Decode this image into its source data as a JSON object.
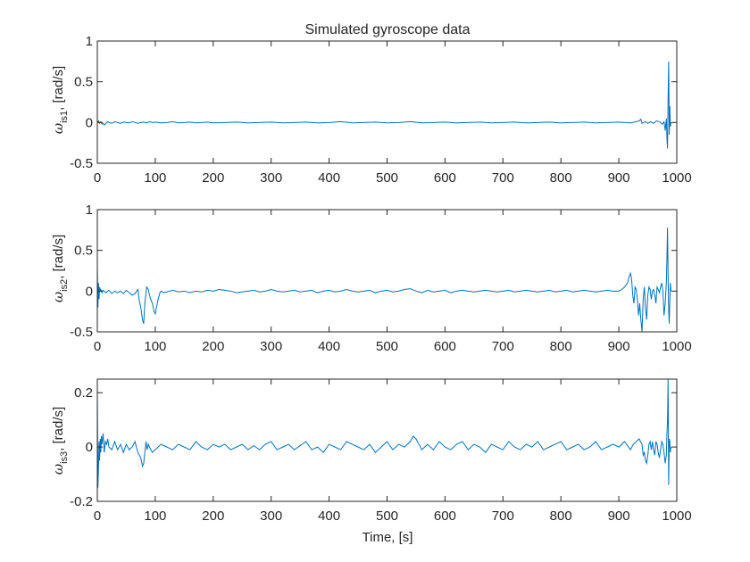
{
  "chart_data": [
    {
      "type": "line",
      "title": "Simulated gyroscope data",
      "xlabel": "",
      "ylabel": {
        "symbol": "ω",
        "subscript": "is1",
        "suffix": ", [rad/s]"
      },
      "xlim": [
        0,
        1000
      ],
      "ylim": [
        -0.5,
        1
      ],
      "xticks": [
        0,
        100,
        200,
        300,
        400,
        500,
        600,
        700,
        800,
        900,
        1000
      ],
      "yticks": [
        -0.5,
        0,
        0.5,
        1
      ],
      "ytick_labels": [
        "-0.5",
        "0",
        "0.5",
        "1"
      ],
      "grid": false,
      "series_color": "#0072BD",
      "series": [
        {
          "x": [
            0,
            2,
            4,
            6,
            8,
            10,
            12,
            14,
            16,
            18,
            20,
            25,
            30,
            35,
            40,
            45,
            50,
            55,
            60,
            65,
            70,
            75,
            80,
            85,
            90,
            95,
            100,
            110,
            120,
            130,
            140,
            150,
            160,
            170,
            180,
            190,
            200,
            220,
            240,
            260,
            280,
            300,
            320,
            340,
            360,
            380,
            400,
            420,
            440,
            460,
            480,
            500,
            520,
            540,
            560,
            580,
            600,
            620,
            640,
            660,
            680,
            700,
            720,
            740,
            760,
            780,
            800,
            820,
            840,
            860,
            880,
            900,
            920,
            930,
            935,
            938,
            940,
            943,
            946,
            950,
            955,
            960,
            965,
            970,
            975,
            978,
            980,
            982,
            983,
            984,
            985,
            986,
            987,
            988,
            989,
            990
          ],
          "y": [
            0,
            0.02,
            -0.01,
            0.01,
            -0.02,
            -0.01,
            -0.03,
            -0.02,
            0,
            0.01,
            0,
            -0.01,
            0.01,
            0,
            -0.01,
            0.005,
            0,
            -0.005,
            0.01,
            0,
            -0.01,
            0,
            0.005,
            -0.005,
            0.01,
            0,
            0.005,
            -0.005,
            0,
            0.01,
            -0.005,
            0,
            0.005,
            -0.005,
            0,
            0.005,
            -0.005,
            0,
            0.005,
            -0.005,
            0,
            0.005,
            -0.005,
            0,
            0.005,
            -0.005,
            0,
            0.01,
            -0.005,
            0,
            0.005,
            -0.005,
            0,
            0.01,
            -0.005,
            0,
            0.005,
            -0.005,
            0,
            0.005,
            -0.005,
            0,
            0.005,
            -0.005,
            0,
            0.005,
            -0.005,
            0,
            0.005,
            -0.005,
            0,
            0.005,
            -0.005,
            0.01,
            0.02,
            0.04,
            -0.01,
            0,
            0.01,
            -0.01,
            0.01,
            -0.01,
            0.02,
            0.01,
            -0.02,
            0.01,
            -0.1,
            0.05,
            -0.2,
            -0.32,
            0.3,
            0.75,
            -0.15,
            0.2,
            -0.05,
            0
          ]
        }
      ]
    },
    {
      "type": "line",
      "title": "",
      "xlabel": "",
      "ylabel": {
        "symbol": "ω",
        "subscript": "is2",
        "suffix": ", [rad/s]"
      },
      "xlim": [
        0,
        1000
      ],
      "ylim": [
        -0.5,
        1
      ],
      "xticks": [
        0,
        100,
        200,
        300,
        400,
        500,
        600,
        700,
        800,
        900,
        1000
      ],
      "yticks": [
        -0.5,
        0,
        0.5,
        1
      ],
      "ytick_labels": [
        "-0.5",
        "0",
        "0.5",
        "1"
      ],
      "grid": false,
      "series_color": "#0072BD",
      "series": [
        {
          "x": [
            0,
            1,
            2,
            3,
            4,
            5,
            6,
            8,
            10,
            15,
            20,
            25,
            30,
            35,
            40,
            45,
            50,
            55,
            60,
            65,
            70,
            72,
            75,
            78,
            80,
            82,
            85,
            88,
            90,
            92,
            95,
            98,
            100,
            102,
            105,
            108,
            110,
            115,
            120,
            130,
            140,
            150,
            160,
            170,
            180,
            190,
            200,
            210,
            220,
            230,
            240,
            250,
            260,
            270,
            280,
            290,
            300,
            310,
            320,
            330,
            340,
            350,
            360,
            370,
            380,
            390,
            400,
            410,
            420,
            430,
            440,
            450,
            460,
            470,
            480,
            490,
            500,
            510,
            520,
            530,
            540,
            550,
            560,
            570,
            580,
            590,
            600,
            610,
            620,
            630,
            640,
            650,
            660,
            670,
            680,
            690,
            700,
            710,
            720,
            730,
            740,
            750,
            760,
            770,
            780,
            790,
            800,
            810,
            820,
            830,
            840,
            850,
            860,
            870,
            880,
            890,
            900,
            905,
            910,
            915,
            918,
            920,
            922,
            924,
            926,
            928,
            930,
            932,
            934,
            936,
            938,
            940,
            942,
            944,
            946,
            948,
            950,
            952,
            954,
            956,
            958,
            960,
            962,
            964,
            966,
            968,
            970,
            972,
            974,
            976,
            978,
            980,
            982,
            983,
            984,
            985,
            986,
            987,
            988,
            989,
            990
          ],
          "y": [
            0.3,
            -0.2,
            0.1,
            -0.1,
            0.05,
            0,
            0.02,
            -0.02,
            0.01,
            -0.02,
            0.01,
            -0.03,
            0,
            -0.02,
            0,
            -0.03,
            0.01,
            -0.02,
            -0.05,
            -0.03,
            0.02,
            -0.1,
            -0.2,
            -0.35,
            -0.4,
            -0.15,
            0.05,
            0.02,
            -0.05,
            -0.1,
            -0.15,
            -0.25,
            -0.28,
            -0.2,
            -0.1,
            -0.02,
            0,
            -0.02,
            -0.01,
            0.01,
            -0.01,
            0,
            -0.02,
            0,
            -0.01,
            0.01,
            0,
            0.02,
            0.01,
            0,
            -0.02,
            -0.01,
            0,
            0.01,
            -0.01,
            0,
            0.02,
            0,
            -0.01,
            0,
            0.01,
            -0.01,
            0,
            0.01,
            -0.02,
            0,
            0.01,
            -0.01,
            0,
            0.02,
            0,
            -0.01,
            0,
            0.01,
            -0.02,
            0,
            0.01,
            -0.01,
            0,
            0.02,
            0.03,
            0,
            -0.02,
            0.01,
            -0.01,
            0,
            0.01,
            -0.02,
            0,
            0.01,
            0,
            -0.01,
            0,
            0.01,
            0,
            -0.01,
            0,
            0.01,
            -0.01,
            0,
            0.01,
            0,
            -0.01,
            0,
            0.01,
            -0.01,
            0,
            0.01,
            -0.01,
            0,
            0.01,
            0,
            -0.01,
            0,
            0.01,
            0,
            0,
            0.02,
            0.05,
            0.1,
            0.18,
            0.22,
            0.15,
            -0.05,
            -0.15,
            0.05,
            0.02,
            -0.1,
            -0.3,
            -0.15,
            -0.35,
            -0.5,
            -0.1,
            0.05,
            -0.2,
            -0.35,
            -0.05,
            0.05,
            0.02,
            -0.1,
            0,
            0.02,
            -0.05,
            -0.15,
            0.05,
            0.02,
            -0.02,
            0.05,
            0.1,
            0,
            -0.3,
            -0.15,
            0.1,
            0.4,
            0.78,
            0.2,
            -0.25,
            -0.4,
            -0.1,
            0.1,
            0
          ]
        }
      ]
    },
    {
      "type": "line",
      "title": "",
      "xlabel": "Time, [s]",
      "ylabel": {
        "symbol": "ω",
        "subscript": "is3",
        "suffix": ", [rad/s]"
      },
      "xlim": [
        0,
        1000
      ],
      "ylim": [
        -0.2,
        0.25
      ],
      "xticks": [
        0,
        100,
        200,
        300,
        400,
        500,
        600,
        700,
        800,
        900,
        1000
      ],
      "yticks": [
        -0.2,
        0,
        0.2
      ],
      "ytick_labels": [
        "-0.2",
        "0",
        "0.2"
      ],
      "grid": false,
      "series_color": "#0072BD",
      "series": [
        {
          "x": [
            0,
            1,
            2,
            3,
            4,
            5,
            6,
            7,
            8,
            10,
            12,
            14,
            16,
            18,
            20,
            25,
            30,
            35,
            40,
            45,
            50,
            55,
            60,
            65,
            70,
            75,
            78,
            80,
            82,
            84,
            86,
            88,
            90,
            95,
            100,
            110,
            120,
            130,
            140,
            150,
            160,
            170,
            180,
            190,
            200,
            210,
            220,
            230,
            240,
            250,
            260,
            270,
            280,
            290,
            300,
            310,
            320,
            330,
            340,
            350,
            360,
            370,
            380,
            390,
            400,
            410,
            420,
            430,
            440,
            450,
            460,
            470,
            480,
            490,
            500,
            510,
            520,
            530,
            540,
            545,
            550,
            555,
            560,
            570,
            580,
            590,
            600,
            610,
            620,
            630,
            640,
            650,
            660,
            670,
            680,
            690,
            700,
            710,
            720,
            730,
            740,
            750,
            760,
            770,
            780,
            790,
            800,
            810,
            820,
            830,
            840,
            850,
            860,
            870,
            880,
            890,
            900,
            910,
            920,
            925,
            930,
            935,
            940,
            942,
            944,
            946,
            948,
            950,
            952,
            954,
            956,
            958,
            960,
            962,
            964,
            966,
            968,
            970,
            972,
            974,
            976,
            978,
            980,
            982,
            983,
            984,
            985,
            986,
            987,
            988,
            989,
            990
          ],
          "y": [
            0.2,
            -0.15,
            -0.08,
            0.02,
            -0.05,
            0.03,
            -0.02,
            0.04,
            0.01,
            0.05,
            -0.02,
            0.02,
            0.01,
            0.03,
            0,
            -0.01,
            0.02,
            -0.01,
            0.01,
            -0.02,
            0.01,
            -0.01,
            0,
            0.02,
            -0.02,
            -0.04,
            -0.07,
            -0.06,
            -0.02,
            0.02,
            -0.01,
            0.01,
            0,
            -0.02,
            -0.01,
            0.01,
            0,
            -0.01,
            0.01,
            0,
            -0.01,
            0.02,
            0,
            -0.01,
            0.01,
            0,
            0.01,
            -0.01,
            0,
            0.01,
            -0.01,
            0.005,
            -0.01,
            0.01,
            0.02,
            -0.01,
            0,
            0.01,
            -0.01,
            0.005,
            0.02,
            -0.01,
            0,
            -0.02,
            0.01,
            0,
            -0.01,
            0.02,
            0.01,
            0,
            -0.01,
            0.01,
            -0.02,
            0,
            0.02,
            -0.01,
            0.01,
            0,
            0.02,
            0.04,
            0.03,
            0.01,
            -0.01,
            0.01,
            -0.01,
            0.02,
            0,
            -0.01,
            0.01,
            0.02,
            -0.01,
            0.01,
            0,
            -0.02,
            0.01,
            0,
            -0.01,
            0.02,
            0,
            -0.01,
            0.01,
            0,
            0.02,
            -0.01,
            0,
            0.01,
            0.02,
            -0.01,
            0,
            0.01,
            -0.01,
            0,
            0.02,
            -0.01,
            0,
            0.01,
            0,
            0.02,
            -0.01,
            0.01,
            0.02,
            0.03,
            0.01,
            -0.03,
            -0.02,
            -0.05,
            -0.06,
            -0.03,
            0.01,
            0.02,
            -0.01,
            0.02,
            -0.01,
            -0.03,
            0.02,
            0.01,
            -0.02,
            -0.04,
            -0.01,
            0.02,
            0.01,
            -0.02,
            -0.06,
            -0.03,
            0.05,
            0.1,
            0.25,
            -0.14,
            0.03,
            0.02,
            -0.02,
            0
          ]
        }
      ]
    }
  ],
  "colors": {
    "line": "#0072BD",
    "axes": "#262626",
    "background": "#ffffff"
  }
}
